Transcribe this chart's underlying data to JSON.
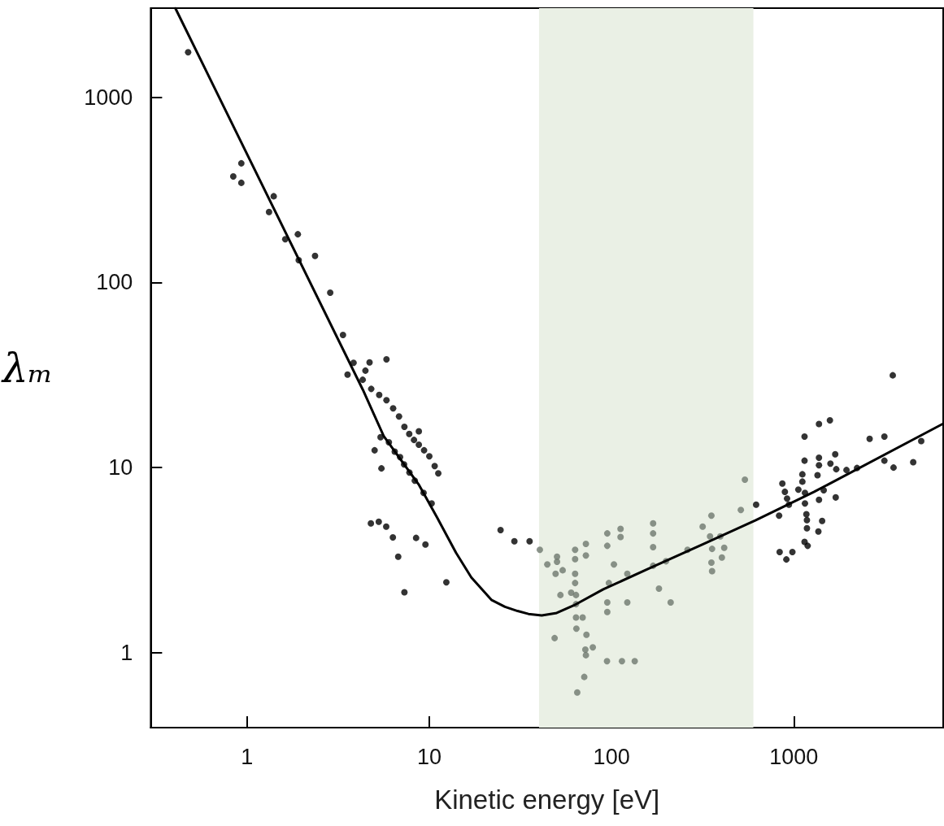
{
  "chart_data": {
    "type": "scatter",
    "xlabel": "Kinetic energy [eV]",
    "ylabel": "λₘ",
    "log": "xy",
    "marker": "circle",
    "xlim": [
      0.296,
      6600
    ],
    "ylim": [
      0.394,
      3030
    ],
    "xticks": [
      1,
      10,
      100,
      1000
    ],
    "yticks": [
      1,
      10,
      100,
      1000
    ],
    "bands": [
      {
        "axis": "x",
        "from": 40,
        "to": 600,
        "color": "#eaf0e5"
      }
    ],
    "series": [
      {
        "color": "#000000",
        "x": [
          0.475,
          0.84,
          0.93,
          0.93,
          1.4,
          1.32,
          1.62,
          1.9,
          1.92,
          2.36,
          2.86,
          3.36,
          3.84,
          3.56,
          4.7,
          4.46,
          5.82,
          4.31,
          4.8,
          5.31,
          5.82,
          6.33,
          6.82,
          7.3,
          7.76,
          8.76,
          8.24,
          8.76,
          9.36,
          10.0,
          10.7,
          11.2,
          5.4,
          6.0,
          6.46,
          6.91,
          7.27,
          7.78,
          8.32,
          9.3,
          10.3,
          5.01,
          5.46,
          4.78,
          5.28,
          5.8,
          6.31,
          6.75,
          7.3,
          8.46,
          9.52,
          12.4,
          24.6,
          29.3,
          35.5,
          621,
          836,
          910,
          982,
          830,
          865,
          893,
          918,
          940,
          1145,
          1145,
          1114,
          1114,
          1059,
          1151,
          1151,
          1172,
          1180,
          1180,
          1145,
          1191,
          1374,
          1578,
          1374,
          1374,
          1349,
          1374,
          1430,
          1364,
          1588,
          1687,
          1709,
          1698,
          1459,
          1945,
          2222,
          2606,
          3140,
          3140,
          3524,
          3490,
          4520,
          5000
        ],
        "values": [
          1750,
          374,
          440,
          345,
          292,
          240,
          171,
          182,
          132,
          139,
          88,
          52,
          36.8,
          31.8,
          37,
          33.4,
          38.4,
          29.8,
          26.6,
          24.7,
          23.1,
          20.9,
          18.9,
          16.6,
          15.2,
          15.7,
          14.1,
          13.3,
          12.4,
          11.5,
          10.2,
          9.3,
          14.6,
          13.7,
          12.2,
          11.4,
          10.4,
          9.4,
          8.5,
          7.3,
          6.4,
          12.4,
          9.9,
          5.0,
          5.1,
          4.8,
          4.2,
          3.3,
          2.12,
          4.17,
          3.84,
          2.4,
          4.6,
          4.0,
          4.0,
          6.3,
          3.5,
          3.19,
          3.5,
          5.5,
          8.2,
          7.4,
          6.8,
          6.3,
          14.7,
          10.9,
          9.2,
          8.4,
          7.6,
          7.3,
          6.4,
          5.6,
          5.2,
          4.7,
          3.97,
          3.78,
          17.2,
          18.0,
          11.3,
          10.3,
          9.1,
          6.7,
          5.15,
          4.52,
          10.5,
          11.8,
          9.8,
          6.9,
          7.55,
          9.7,
          9.95,
          14.3,
          14.7,
          10.9,
          10.0,
          31.5,
          10.7,
          13.9
        ]
      },
      {
        "color": "#6e786e",
        "x": [
          40.4,
          44.4,
          50.2,
          50.2,
          49.3,
          53.9,
          52.4,
          48.7,
          63.1,
          63.1,
          63.1,
          63.1,
          60.0,
          63.8,
          63.8,
          63.8,
          69.4,
          64.1,
          72.8,
          71.8,
          72.3,
          78.9,
          70.8,
          64.8,
          72.3,
          72.3,
          94.7,
          94.7,
          103,
          96.6,
          94.7,
          94.7,
          112,
          112,
          122,
          122,
          94.4,
          114,
          134,
          169,
          169,
          169,
          169,
          182,
          211,
          199,
          261,
          316,
          353,
          347,
          356,
          353,
          356,
          403,
          415,
          395,
          512,
          539
        ],
        "values": [
          3.6,
          3.0,
          3.3,
          3.1,
          2.67,
          2.79,
          2.05,
          1.2,
          3.6,
          3.2,
          2.67,
          2.38,
          2.11,
          2.05,
          1.83,
          1.55,
          1.55,
          1.35,
          1.25,
          1.04,
          0.97,
          1.07,
          0.74,
          0.61,
          3.87,
          3.35,
          4.41,
          3.78,
          3.0,
          2.38,
          1.87,
          1.66,
          4.67,
          4.22,
          2.67,
          1.87,
          0.9,
          0.9,
          0.9,
          5.0,
          4.41,
          3.72,
          2.95,
          2.22,
          1.87,
          3.12,
          3.6,
          4.8,
          5.5,
          4.25,
          3.64,
          3.07,
          2.76,
          3.27,
          3.69,
          4.25,
          5.9,
          8.6
        ]
      },
      {
        "type": "line",
        "color": "#000000",
        "marker": "none",
        "line_style": "solid",
        "x": [
          0.404,
          4.32,
          5.62,
          8.79,
          11.0,
          14.0,
          17.0,
          21.9,
          26.0,
          30.5,
          35.0,
          41.4,
          50,
          62,
          90,
          159,
          314,
          618,
          1294,
          6550
        ],
        "values": [
          3030,
          26.3,
          14.8,
          8.04,
          5.4,
          3.47,
          2.55,
          1.93,
          1.77,
          1.68,
          1.62,
          1.59,
          1.64,
          1.8,
          2.2,
          2.84,
          3.84,
          5.2,
          7.4,
          17.2
        ]
      }
    ]
  }
}
